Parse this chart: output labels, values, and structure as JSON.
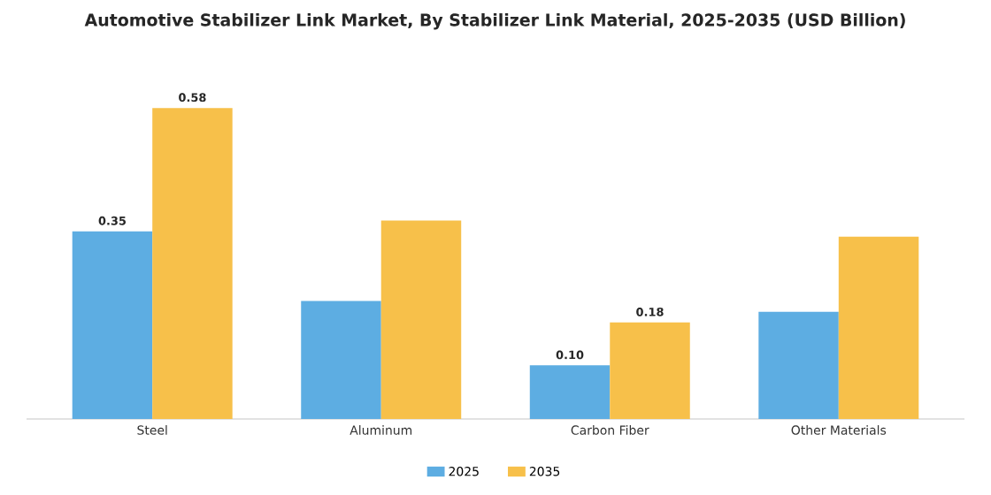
{
  "chart_data": {
    "type": "bar",
    "title": "Automotive Stabilizer Link Market, By Stabilizer Link Material, 2025-2035 (USD Billion)",
    "categories": [
      "Steel",
      "Aluminum",
      "Carbon Fiber",
      "Other Materials"
    ],
    "series": [
      {
        "name": "2025",
        "color": "#5dade2",
        "values": [
          0.35,
          0.22,
          0.1,
          0.2
        ],
        "value_labels": [
          "0.35",
          null,
          "0.10",
          null
        ]
      },
      {
        "name": "2035",
        "color": "#f7c04a",
        "values": [
          0.58,
          0.37,
          0.18,
          0.34
        ],
        "value_labels": [
          "0.58",
          null,
          "0.18",
          null
        ]
      }
    ],
    "legend": "bottom",
    "grid": false
  }
}
